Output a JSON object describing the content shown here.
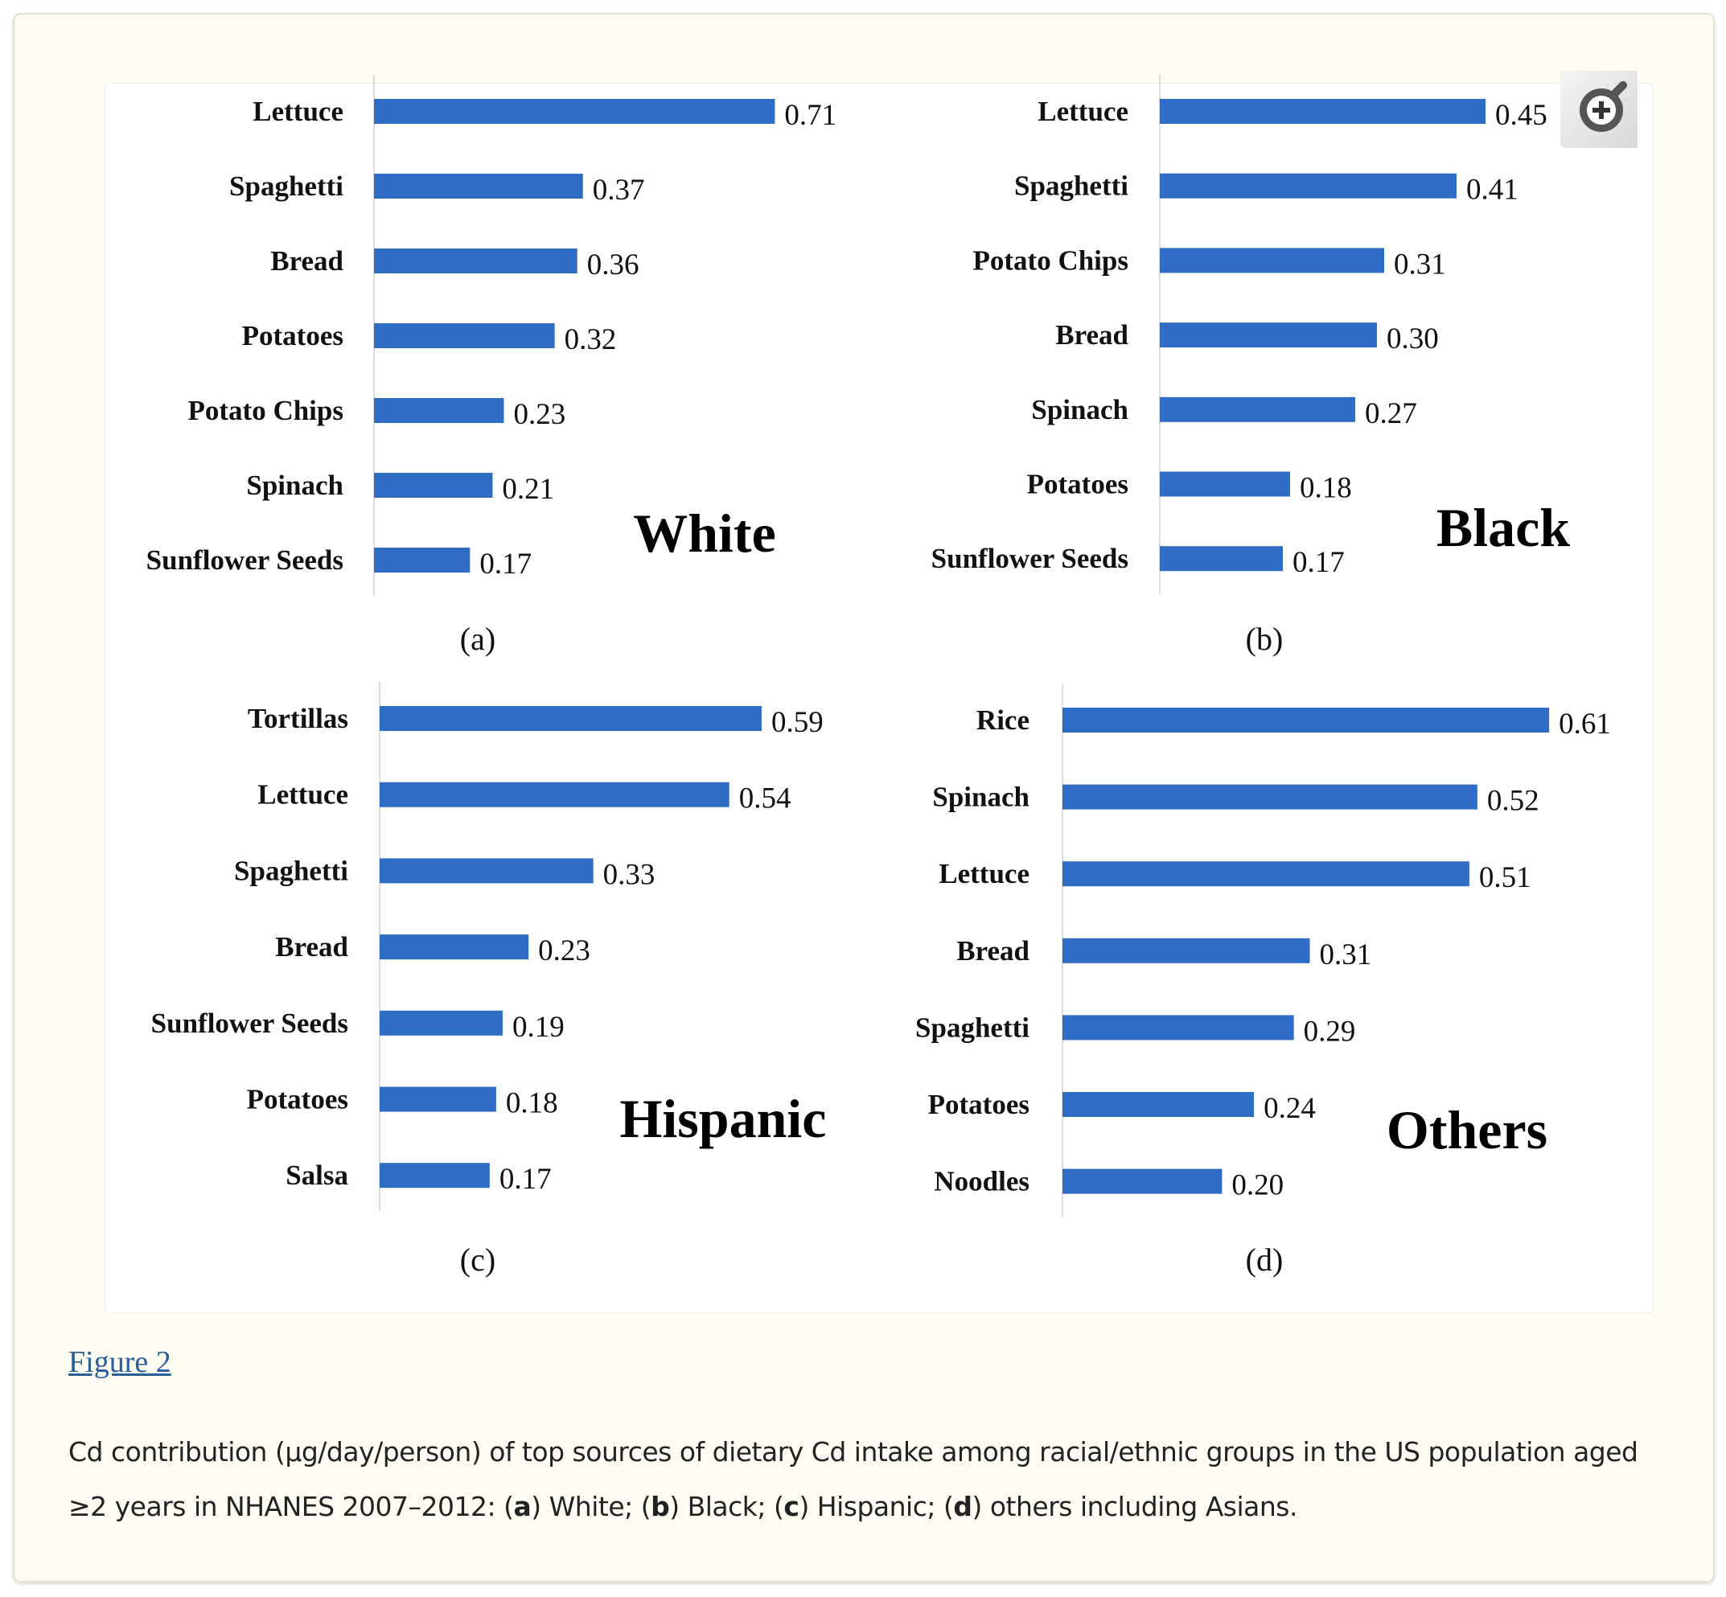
{
  "bar_color": "#2f6cc4",
  "chart_data": [
    {
      "type": "bar",
      "orientation": "horizontal",
      "group_label": "White",
      "panel_label": "(a)",
      "categories": [
        "Lettuce",
        "Spaghetti",
        "Bread",
        "Potatoes",
        "Potato Chips",
        "Spinach",
        "Sunflower Seeds"
      ],
      "values": [
        0.71,
        0.37,
        0.36,
        0.32,
        0.23,
        0.21,
        0.17
      ],
      "value_labels": [
        "0.71",
        "0.37",
        "0.36",
        "0.32",
        "0.23",
        "0.21",
        "0.17"
      ]
    },
    {
      "type": "bar",
      "orientation": "horizontal",
      "group_label": "Black",
      "panel_label": "(b)",
      "categories": [
        "Lettuce",
        "Spaghetti",
        "Potato Chips",
        "Bread",
        "Spinach",
        "Potatoes",
        "Sunflower Seeds"
      ],
      "values": [
        0.45,
        0.41,
        0.31,
        0.3,
        0.27,
        0.18,
        0.17
      ],
      "value_labels": [
        "0.45",
        "0.41",
        "0.31",
        "0.30",
        "0.27",
        "0.18",
        "0.17"
      ]
    },
    {
      "type": "bar",
      "orientation": "horizontal",
      "group_label": "Hispanic",
      "panel_label": "(c)",
      "categories": [
        "Tortillas",
        "Lettuce",
        "Spaghetti",
        "Bread",
        "Sunflower Seeds",
        "Potatoes",
        "Salsa"
      ],
      "values": [
        0.59,
        0.54,
        0.33,
        0.23,
        0.19,
        0.18,
        0.17
      ],
      "value_labels": [
        "0.59",
        "0.54",
        "0.33",
        "0.23",
        "0.19",
        "0.18",
        "0.17"
      ]
    },
    {
      "type": "bar",
      "orientation": "horizontal",
      "group_label": "Others",
      "panel_label": "(d)",
      "categories": [
        "Rice",
        "Spinach",
        "Lettuce",
        "Bread",
        "Spaghetti",
        "Potatoes",
        "Noodles"
      ],
      "values": [
        0.61,
        0.52,
        0.51,
        0.31,
        0.29,
        0.24,
        0.2
      ],
      "value_labels": [
        "0.61",
        "0.52",
        "0.51",
        "0.31",
        "0.29",
        "0.24",
        "0.20"
      ]
    }
  ],
  "zoom_icon": "magnifier-plus-icon",
  "figure_link": "Figure 2",
  "caption": {
    "part1": "Cd contribution (μg/day/person) of top sources of dietary Cd intake among racial/ethnic groups in the US population aged ≥2 years in NHANES 2007–2012: (",
    "a": "a",
    "a_text": ") White; (",
    "b": "b",
    "b_text": ") Black; (",
    "c": "c",
    "c_text": ") Hispanic; (",
    "d": "d",
    "d_text": ") others including Asians."
  }
}
